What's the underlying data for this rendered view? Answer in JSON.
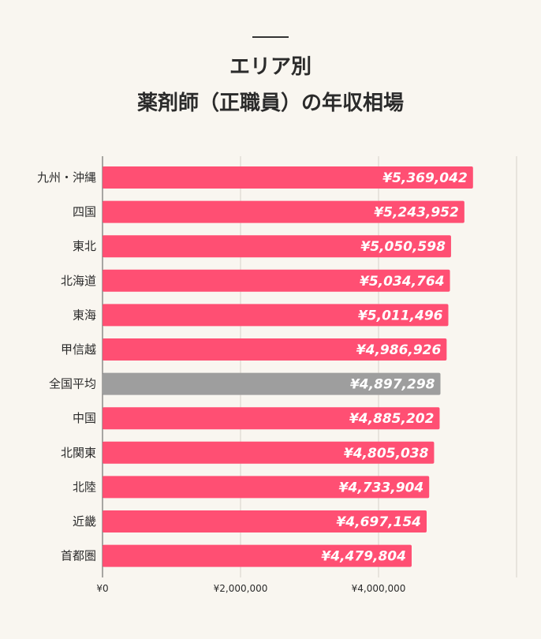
{
  "title": {
    "line1": "エリア別",
    "line2": "薬剤師（正職員）の年収相場"
  },
  "colors": {
    "bar": "#ff4f73",
    "highlight": "#9e9e9e",
    "grid": "#d6d2ca",
    "background": "#f9f6f0"
  },
  "chart_data": {
    "type": "bar",
    "orientation": "horizontal",
    "categories": [
      "九州・沖縄",
      "四国",
      "東北",
      "北海道",
      "東海",
      "甲信越",
      "全国平均",
      "中国",
      "北関東",
      "北陸",
      "近畿",
      "首都圏"
    ],
    "values": [
      5369042,
      5243952,
      5050598,
      5034764,
      5011496,
      4986926,
      4897298,
      4885202,
      4805038,
      4733904,
      4697154,
      4479804
    ],
    "value_labels": [
      "¥5,369,042",
      "¥5,243,952",
      "¥5,050,598",
      "¥5,034,764",
      "¥5,011,496",
      "¥4,986,926",
      "¥4,897,298",
      "¥4,885,202",
      "¥4,805,038",
      "¥4,733,904",
      "¥4,697,154",
      "¥4,479,804"
    ],
    "highlight_category": "全国平均",
    "xticks": [
      0,
      2000000,
      4000000
    ],
    "xtick_labels": [
      "¥0",
      "¥2,000,000",
      "¥4,000,000"
    ],
    "xlim": [
      0,
      6000000
    ],
    "grid": true,
    "legend": false
  }
}
